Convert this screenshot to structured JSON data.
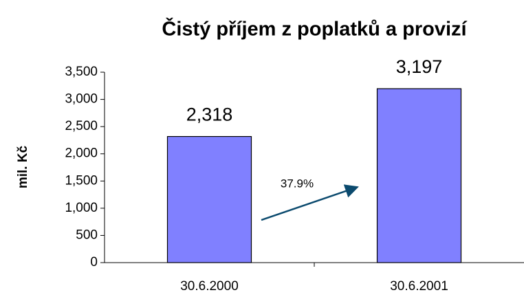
{
  "chart_data": {
    "type": "bar",
    "title": "Čistý příjem z poplatků a provizí",
    "y_label": "mil. Kč",
    "annotation": "37.9%",
    "categories": [
      "30.6.2000",
      "30.6.2001"
    ],
    "values": [
      2318,
      3197
    ],
    "value_labels": [
      "2,318",
      "3,197"
    ],
    "color": "#8080ff",
    "ylim": [
      0,
      3500
    ],
    "yticks": [
      0,
      500,
      {
        "value": 1000,
        "label": "1,000"
      },
      {
        "value": 1500,
        "label": "1,500"
      },
      {
        "value": 2000,
        "label": "2,000"
      },
      {
        "value": 2500,
        "label": "2,500"
      },
      {
        "value": 3000,
        "label": "3,000"
      },
      {
        "value": 3500,
        "label": "3,500"
      }
    ]
  }
}
